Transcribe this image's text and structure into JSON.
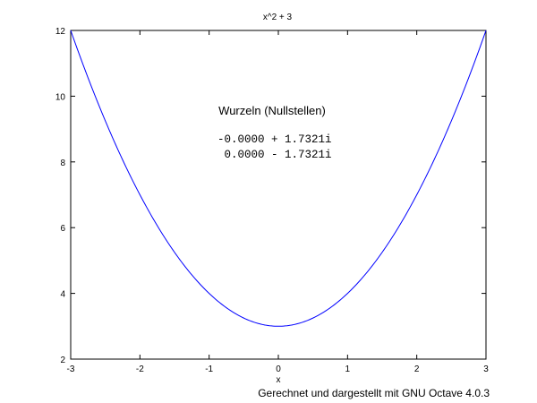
{
  "chart_data": {
    "type": "line",
    "title": "x^2 + 3",
    "xlabel": "x",
    "ylabel": "",
    "xlim": [
      -3,
      3
    ],
    "ylim": [
      2,
      12
    ],
    "x_ticks": [
      -3,
      -2,
      -1,
      0,
      1,
      2,
      3
    ],
    "y_ticks": [
      2,
      4,
      6,
      8,
      10,
      12
    ],
    "grid": false,
    "series": [
      {
        "expression": "x^2 + 3",
        "color": "#0000ff",
        "x_range": [
          -3,
          3
        ]
      }
    ],
    "annotations": {
      "title": "Wurzeln (Nullstellen)",
      "lines": [
        "-0.0000 + 1.7321i",
        " 0.0000 - 1.7321i"
      ]
    }
  },
  "footer": "Gerechnet und dargestellt mit GNU Octave 4.0.3"
}
